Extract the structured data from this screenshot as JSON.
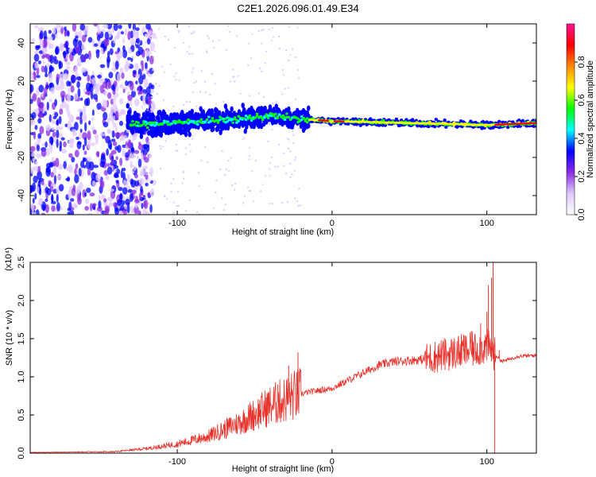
{
  "title": "C2E1.2026.096.01.49.E34",
  "chart_data": [
    {
      "type": "heatmap",
      "name": "spectrogram",
      "xlabel": "Height of straight line (km)",
      "ylabel": "Frequency (Hz)",
      "xlim": [
        -195,
        132
      ],
      "ylim": [
        -50,
        50
      ],
      "xticks": [
        -100,
        0,
        100
      ],
      "yticks": [
        -40,
        -20,
        0,
        20,
        40
      ],
      "colorbar": {
        "label": "Normalized spectral amplitude",
        "range": [
          0,
          1
        ],
        "ticks": [
          0.0,
          0.2,
          0.4,
          0.6,
          0.8
        ],
        "colors": [
          "#ffffff",
          "#e0c8ff",
          "#8a2be2",
          "#0000ff",
          "#00ffff",
          "#00ff00",
          "#ffff00",
          "#ff8800",
          "#ff0000",
          "#ff1493"
        ]
      },
      "features": {
        "noise_region_x": [
          -195,
          -125
        ],
        "main_band_center_hz": [
          [
            -130,
            -3
          ],
          [
            -60,
            0
          ],
          [
            -40,
            2
          ],
          [
            -20,
            0
          ],
          [
            0,
            -1
          ],
          [
            50,
            -2
          ],
          [
            100,
            -3
          ],
          [
            132,
            -2
          ]
        ],
        "peak_band_start_x": -15
      }
    },
    {
      "type": "line",
      "name": "snr",
      "xlabel": "Height of straight line (km)",
      "ylabel": "SNR (10 * v/v)",
      "y_multiplier": "(x10⁴)",
      "xlim": [
        -195,
        132
      ],
      "ylim": [
        0,
        2.5
      ],
      "xticks": [
        -100,
        0,
        100
      ],
      "yticks": [
        0.0,
        0.5,
        1.0,
        1.5,
        2.0,
        2.5
      ],
      "color": "#e8312a",
      "envelope": [
        [
          -195,
          0.01
        ],
        [
          -140,
          0.02
        ],
        [
          -120,
          0.06
        ],
        [
          -100,
          0.12
        ],
        [
          -80,
          0.22
        ],
        [
          -60,
          0.4
        ],
        [
          -40,
          0.62
        ],
        [
          -25,
          0.75
        ],
        [
          -15,
          0.8
        ],
        [
          0,
          0.85
        ],
        [
          10,
          0.95
        ],
        [
          20,
          1.05
        ],
        [
          30,
          1.15
        ],
        [
          40,
          1.2
        ],
        [
          60,
          1.23
        ],
        [
          70,
          1.28
        ],
        [
          80,
          1.32
        ],
        [
          90,
          1.35
        ],
        [
          100,
          1.4
        ],
        [
          110,
          1.2
        ],
        [
          120,
          1.27
        ],
        [
          132,
          1.28
        ]
      ],
      "spikes": [
        [
          -22,
          1.32
        ],
        [
          -28,
          1.15
        ],
        [
          -35,
          0.9
        ],
        [
          85,
          1.55
        ],
        [
          90,
          1.6
        ],
        [
          96,
          1.7
        ],
        [
          100,
          1.85
        ],
        [
          101,
          2.2
        ],
        [
          103,
          2.3
        ],
        [
          104,
          2.5
        ],
        [
          105,
          0.0
        ],
        [
          108,
          1.35
        ]
      ]
    }
  ]
}
